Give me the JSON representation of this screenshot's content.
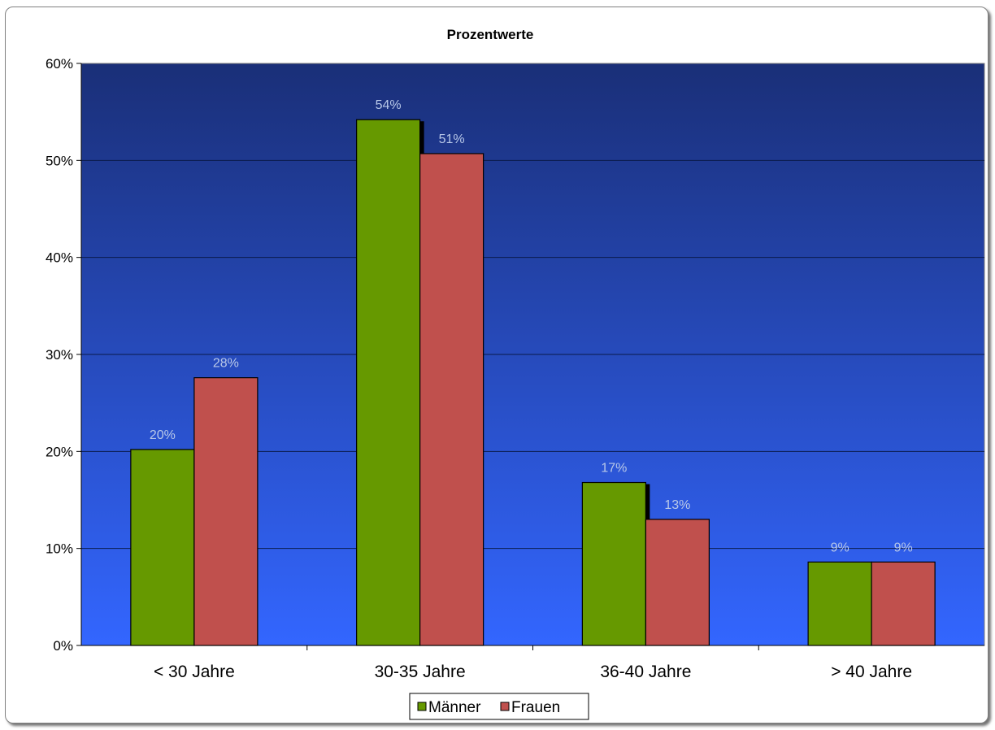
{
  "chart_data": {
    "type": "bar",
    "title": "Prozentwerte",
    "categories": [
      "< 30 Jahre",
      "30-35 Jahre",
      "36-40 Jahre",
      "> 40 Jahre"
    ],
    "series": [
      {
        "name": "Männer",
        "color": "#669900",
        "values": [
          20.2,
          54.2,
          16.8,
          8.6
        ],
        "labels": [
          "20%",
          "54%",
          "17%",
          "9%"
        ]
      },
      {
        "name": "Frauen",
        "color": "#c0504d",
        "values": [
          27.6,
          50.7,
          13.0,
          8.6
        ],
        "labels": [
          "28%",
          "51%",
          "13%",
          "9%"
        ]
      }
    ],
    "ylim": [
      0,
      60
    ],
    "yticks": [
      0,
      10,
      20,
      30,
      40,
      50,
      60
    ],
    "ytick_labels": [
      "0%",
      "10%",
      "20%",
      "30%",
      "40%",
      "50%",
      "60%"
    ],
    "grid": true,
    "legend": "bottom-center",
    "plot_background": [
      "#1a2f78",
      "#3366ff"
    ]
  }
}
